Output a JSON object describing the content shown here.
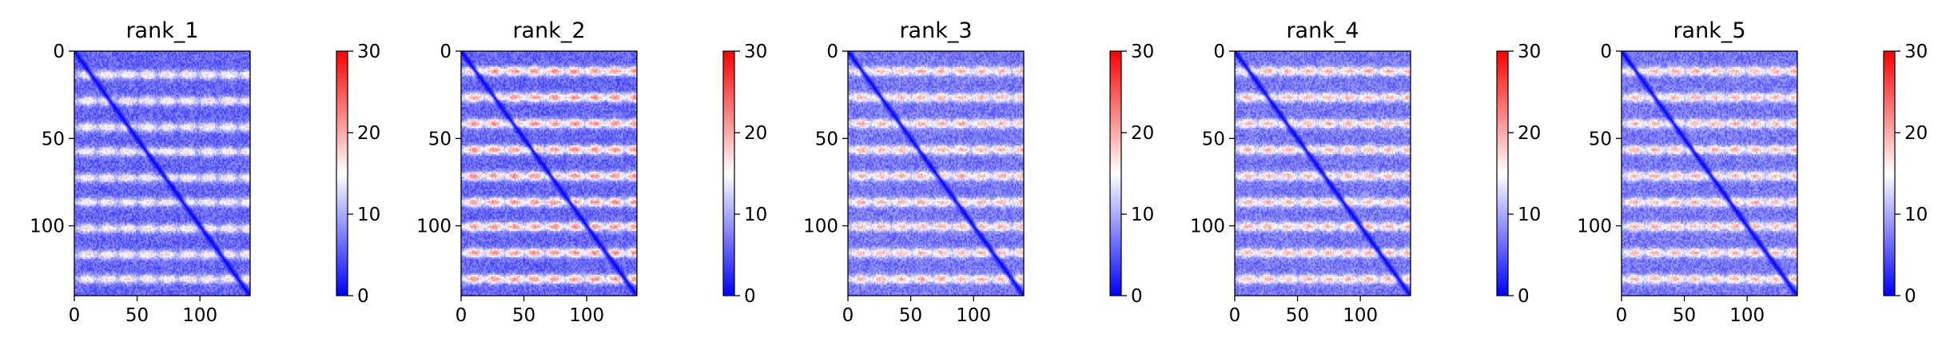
{
  "chart_data": [
    {
      "type": "heatmap",
      "title": "rank_1",
      "x_ticks": [
        0,
        50,
        100
      ],
      "y_ticks": [
        0,
        50,
        100
      ],
      "xlim": [
        0,
        140
      ],
      "ylim": [
        140,
        0
      ],
      "colorbar": {
        "min": 0,
        "max": 30,
        "ticks": [
          0,
          10,
          20,
          30
        ],
        "colormap": "bwr"
      },
      "pattern": {
        "diagonal_value": 0,
        "background_value": 6,
        "row_peaks": [
          13,
          28,
          43,
          57,
          72,
          86,
          101,
          116,
          130
        ],
        "peak_value": 17
      }
    },
    {
      "type": "heatmap",
      "title": "rank_2",
      "x_ticks": [
        0,
        50,
        100
      ],
      "y_ticks": [
        0,
        50,
        100
      ],
      "xlim": [
        0,
        140
      ],
      "ylim": [
        140,
        0
      ],
      "colorbar": {
        "min": 0,
        "max": 30,
        "ticks": [
          0,
          10,
          20,
          30
        ],
        "colormap": "bwr"
      },
      "pattern": {
        "diagonal_value": 0,
        "background_value": 6,
        "row_peaks": [
          11,
          26,
          41,
          56,
          71,
          86,
          100,
          115,
          130
        ],
        "peak_value": 22
      }
    },
    {
      "type": "heatmap",
      "title": "rank_3",
      "x_ticks": [
        0,
        50,
        100
      ],
      "y_ticks": [
        0,
        50,
        100
      ],
      "xlim": [
        0,
        140
      ],
      "ylim": [
        140,
        0
      ],
      "colorbar": {
        "min": 0,
        "max": 30,
        "ticks": [
          0,
          10,
          20,
          30
        ],
        "colormap": "bwr"
      },
      "pattern": {
        "diagonal_value": 0,
        "background_value": 7,
        "row_peaks": [
          11,
          26,
          41,
          56,
          71,
          86,
          100,
          115,
          130
        ],
        "peak_value": 20
      }
    },
    {
      "type": "heatmap",
      "title": "rank_4",
      "x_ticks": [
        0,
        50,
        100
      ],
      "y_ticks": [
        0,
        50,
        100
      ],
      "xlim": [
        0,
        140
      ],
      "ylim": [
        140,
        0
      ],
      "colorbar": {
        "min": 0,
        "max": 30,
        "ticks": [
          0,
          10,
          20,
          30
        ],
        "colormap": "bwr"
      },
      "pattern": {
        "diagonal_value": 0,
        "background_value": 7,
        "row_peaks": [
          11,
          26,
          41,
          56,
          71,
          86,
          100,
          115,
          130
        ],
        "peak_value": 20
      }
    },
    {
      "type": "heatmap",
      "title": "rank_5",
      "x_ticks": [
        0,
        50,
        100
      ],
      "y_ticks": [
        0,
        50,
        100
      ],
      "xlim": [
        0,
        140
      ],
      "ylim": [
        140,
        0
      ],
      "colorbar": {
        "min": 0,
        "max": 30,
        "ticks": [
          0,
          10,
          20,
          30
        ],
        "colormap": "bwr"
      },
      "pattern": {
        "diagonal_value": 0,
        "background_value": 7,
        "row_peaks": [
          11,
          26,
          41,
          56,
          71,
          86,
          100,
          115,
          130
        ],
        "peak_value": 20
      }
    }
  ]
}
